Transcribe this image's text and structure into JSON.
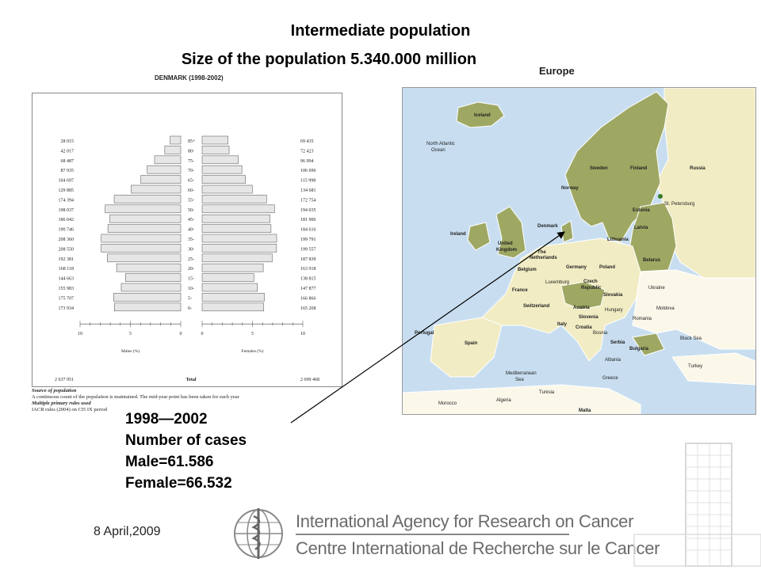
{
  "slide": {
    "title": "Intermediate population",
    "subtitle": "Size of the population 5.340.000 million",
    "date": "8 April,2009",
    "cases": {
      "period": "1998—2002",
      "label": "Number of cases",
      "male": "Male=61.586",
      "female": "Female=66.532"
    },
    "org": {
      "name_en": "International Agency for Research on Cancer",
      "name_fr": "Centre International de Recherche sur le Cancer"
    }
  },
  "chart_data": {
    "type": "bar",
    "title": "DENMARK (1998-2002)",
    "xlabel_left": "Males (%)",
    "xlabel_right": "Females (%)",
    "total_label": "Total",
    "total_male": "2 637 951",
    "total_female": "2 699 468",
    "ticks": [
      "10",
      "5",
      "0"
    ],
    "ticks_right": [
      "0",
      "5",
      "10"
    ],
    "xlim": [
      0,
      10
    ],
    "age_groups": [
      "85+",
      "80-",
      "75-",
      "70-",
      "65-",
      "60-",
      "55-",
      "50-",
      "45-",
      "40-",
      "35-",
      "30-",
      "25-",
      "20-",
      "15-",
      "10-",
      "5-",
      "0-"
    ],
    "series": [
      {
        "name": "Males (%)",
        "counts": [
          "28 015",
          "42 017",
          "68 487",
          "87 935",
          "104 697",
          "129 885",
          "174 394",
          "198 037",
          "186 042",
          "190 746",
          "208 360",
          "208 550",
          "192 381",
          "168 118",
          "144 663",
          "155 983",
          "175 707",
          "173 934"
        ],
        "values": [
          1.06,
          1.59,
          2.6,
          3.33,
          3.97,
          4.92,
          6.61,
          7.51,
          7.05,
          7.23,
          7.9,
          7.91,
          7.29,
          6.37,
          5.48,
          5.91,
          6.66,
          6.59
        ]
      },
      {
        "name": "Females (%)",
        "counts": [
          "69 435",
          "72 423",
          "96 994",
          "106 696",
          "115 998",
          "134 681",
          "172 754",
          "194 035",
          "181 906",
          "184 616",
          "199 791",
          "199 557",
          "187 839",
          "163 918",
          "138 815",
          "147 877",
          "166 866",
          "165 268"
        ],
        "values": [
          2.57,
          2.68,
          3.59,
          3.95,
          4.3,
          4.99,
          6.4,
          7.19,
          6.74,
          6.84,
          7.4,
          7.39,
          6.96,
          6.07,
          5.14,
          5.48,
          6.18,
          6.12
        ]
      }
    ],
    "source": {
      "heading": "Source of population",
      "text": "A continuous count of the population is maintained. The mid-year point has been taken for each year",
      "rules_heading": "Multiple primary rules used",
      "rules_text": "IACR rules (2004) on CI5 IX period"
    }
  },
  "map": {
    "title": "Europe",
    "labels": {
      "iceland": "Iceland",
      "ocean": "North Atlantic",
      "ocean2": "Ocean",
      "norway": "Norway",
      "sweden": "Sweden",
      "finland": "Finland",
      "russia": "Russia",
      "estonia": "Estonia",
      "stpete": "St. Petersburg",
      "latvia": "Latvia",
      "lithuania": "Lithuania",
      "denmark": "Denmark",
      "ireland": "Ireland",
      "uk": "United",
      "uk2": "Kingdom",
      "belarus": "Belarus",
      "netherlands": "The",
      "netherlands2": "Netherlands",
      "germany": "Germany",
      "poland": "Poland",
      "belgium": "Belgium",
      "lux": "Luxemburg",
      "czech": "Czech",
      "czech2": "Republic",
      "slovakia": "Slovakia",
      "ukraine": "Ukraine",
      "france": "France",
      "switzerland": "Switzerland",
      "austria": "Austria",
      "hungary": "Hungary",
      "moldova": "Moldova",
      "slovenia": "Slovenia",
      "croatia": "Croatia",
      "romania": "Romania",
      "italy": "Italy",
      "bosnia": "Bosnia",
      "serbia": "Serbia",
      "portugal": "Portugal",
      "spain": "Spain",
      "bulgaria": "Bulgaria",
      "blacksea": "Black Sea",
      "albania": "Albania",
      "turkey": "Turkey",
      "greece": "Greece",
      "medsea": "Mediterranean",
      "medsea2": "Sea",
      "tunisia": "Tunisia",
      "morocco": "Morocco",
      "algeria": "Algeria",
      "malta": "Malta"
    }
  }
}
